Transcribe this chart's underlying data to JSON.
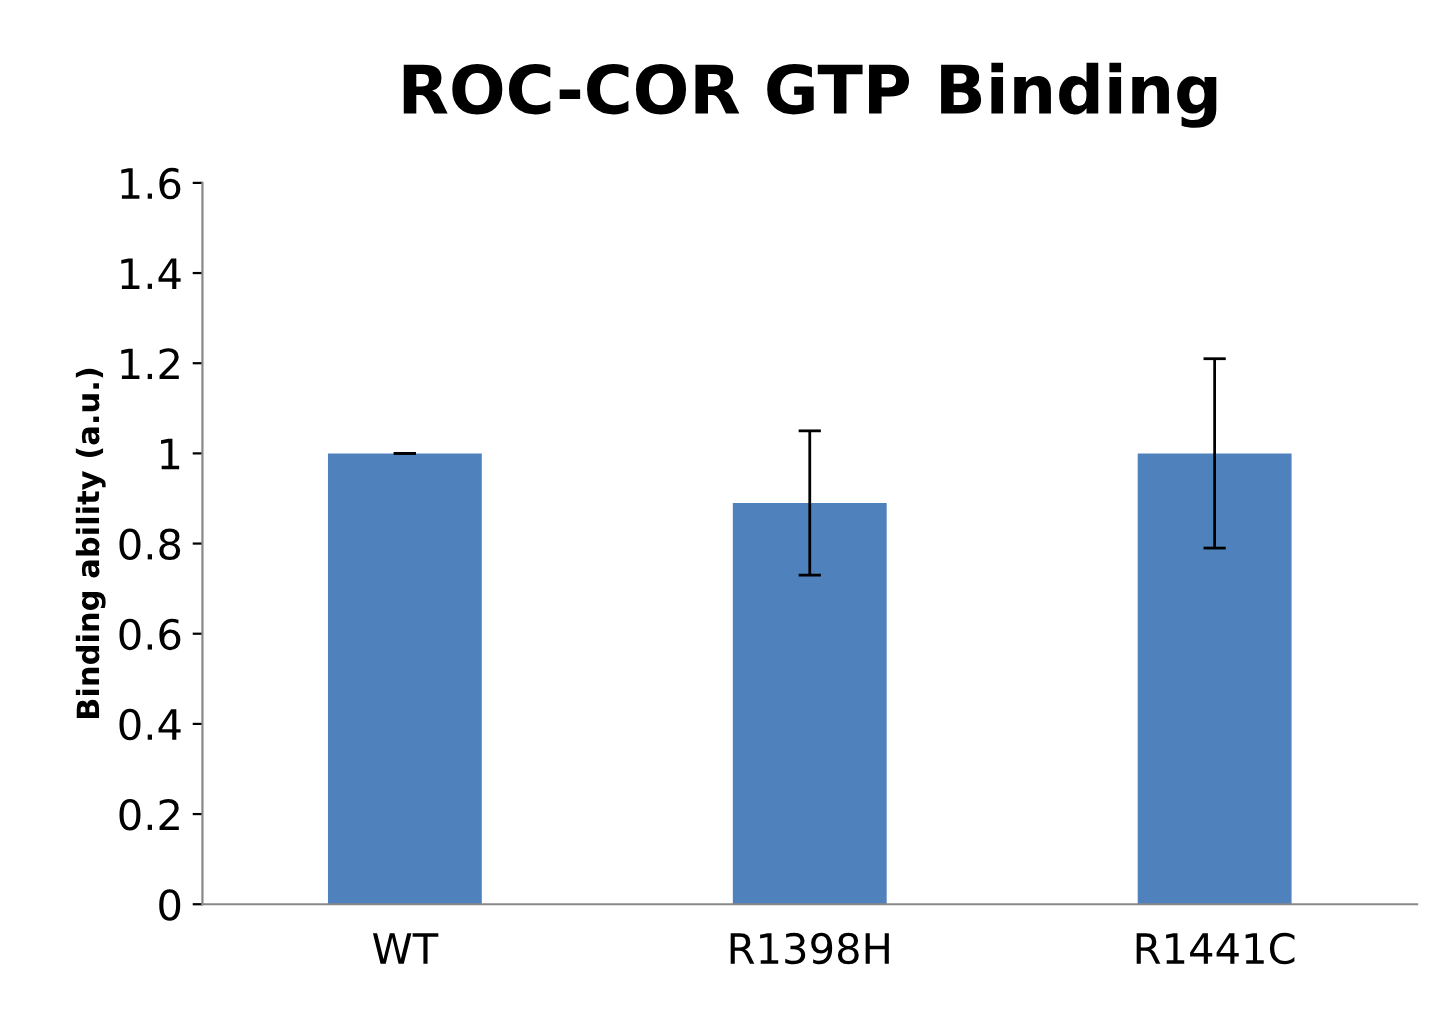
{
  "chart_data": {
    "type": "bar",
    "title": "ROC-COR GTP Binding",
    "ylabel": "Binding ability (a.u.)",
    "categories": [
      "WT",
      "R1398H",
      "R1441C"
    ],
    "values": [
      1.0,
      0.89,
      1.0
    ],
    "errors": [
      0,
      [
        0.73,
        1.05
      ],
      [
        0.79,
        1.21
      ]
    ],
    "color": "#4f81bd",
    "ylim": [
      0,
      1.6
    ],
    "yticks": [
      0,
      0.2,
      0.4,
      0.6,
      0.8,
      1,
      1.2,
      1.4,
      1.6
    ],
    "grid": false,
    "legend": false
  }
}
